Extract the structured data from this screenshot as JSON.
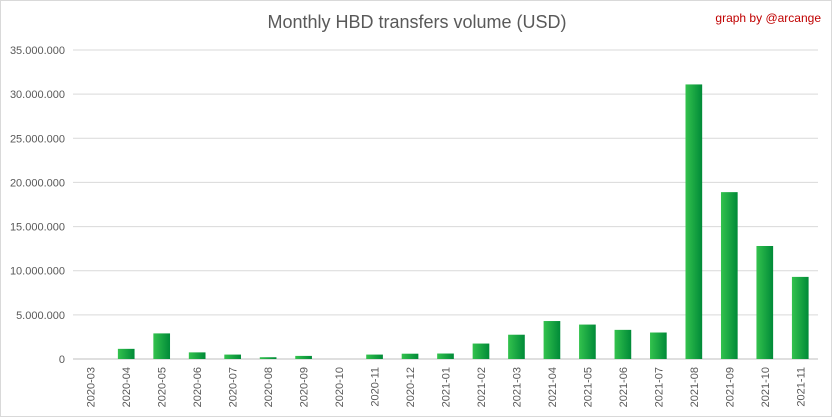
{
  "chart_data": {
    "type": "bar",
    "title": "Monthly HBD transfers volume (USD)",
    "credit": "graph by @arcange",
    "xlabel": "",
    "ylabel": "",
    "ylim": [
      0,
      35000000
    ],
    "yticks": [
      "0",
      "5.000.000",
      "10.000.000",
      "15.000.000",
      "20.000.000",
      "25.000.000",
      "30.000.000",
      "35.000.000"
    ],
    "grid": true,
    "legend": "none",
    "bar_color": "#00a040",
    "categories": [
      "2020-03",
      "2020-04",
      "2020-05",
      "2020-06",
      "2020-07",
      "2020-08",
      "2020-09",
      "2020-10",
      "2020-11",
      "2020-12",
      "2021-01",
      "2021-02",
      "2021-03",
      "2021-04",
      "2021-05",
      "2021-06",
      "2021-07",
      "2021-08",
      "2021-09",
      "2021-10",
      "2021-11"
    ],
    "values": [
      0,
      1150000,
      2900000,
      750000,
      500000,
      200000,
      350000,
      0,
      500000,
      600000,
      620000,
      1750000,
      2750000,
      4300000,
      3900000,
      3300000,
      3000000,
      31100000,
      18900000,
      12800000,
      9300000
    ]
  }
}
